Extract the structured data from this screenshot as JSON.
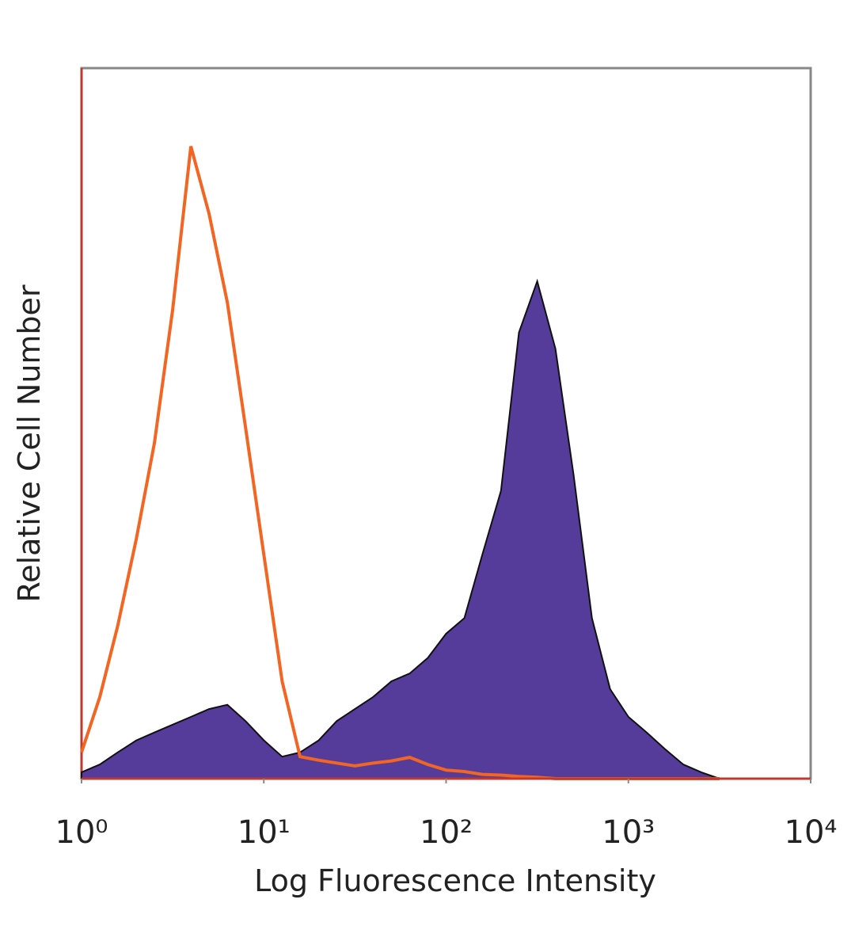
{
  "chart_data": {
    "type": "line",
    "xlabel": "Log Fluorescence Intensity",
    "ylabel": "Relative Cell Number",
    "xscale": "log",
    "xlim": [
      1,
      10000
    ],
    "xticks": [
      {
        "value": 1,
        "label": "10⁰"
      },
      {
        "value": 10,
        "label": "10¹"
      },
      {
        "value": 100,
        "label": "10²"
      },
      {
        "value": 1000,
        "label": "10³"
      },
      {
        "value": 10000,
        "label": "10⁴"
      }
    ],
    "ylim": [
      0,
      100
    ],
    "x": [
      1,
      1.26,
      1.58,
      2,
      2.51,
      3.16,
      3.98,
      5.01,
      6.31,
      7.94,
      10,
      12.6,
      15.8,
      20,
      25.1,
      31.6,
      39.8,
      50.1,
      63.1,
      79.4,
      100,
      126,
      158,
      200,
      251,
      316,
      398,
      501,
      631,
      794,
      1000,
      1260,
      1580,
      2000,
      2510,
      3160
    ],
    "series": [
      {
        "color": "#553c9a",
        "fill": true,
        "values": [
          0.9,
          2.0,
          3.7,
          5.4,
          6.5,
          7.6,
          8.7,
          9.8,
          10.4,
          8.1,
          5.4,
          3.1,
          3.7,
          5.4,
          8.1,
          9.8,
          11.5,
          13.7,
          14.8,
          17,
          20.4,
          22.6,
          31.5,
          40.5,
          62.8,
          70,
          60.5,
          42.7,
          22.6,
          12.6,
          8.7,
          6.5,
          4.2,
          2.0,
          0.9,
          0
        ]
      },
      {
        "color": "#f26522",
        "fill": false,
        "values": [
          3.7,
          11.5,
          21.5,
          33.8,
          47.2,
          66,
          89,
          79.5,
          67,
          49.4,
          31.5,
          13.7,
          3.1,
          2.6,
          2.2,
          1.8,
          2.2,
          2.5,
          3.0,
          2.0,
          1.2,
          1.0,
          0.6,
          0.5,
          0.3,
          0.2,
          0,
          0,
          0,
          0,
          0,
          0,
          0,
          0,
          0,
          0
        ]
      }
    ]
  }
}
